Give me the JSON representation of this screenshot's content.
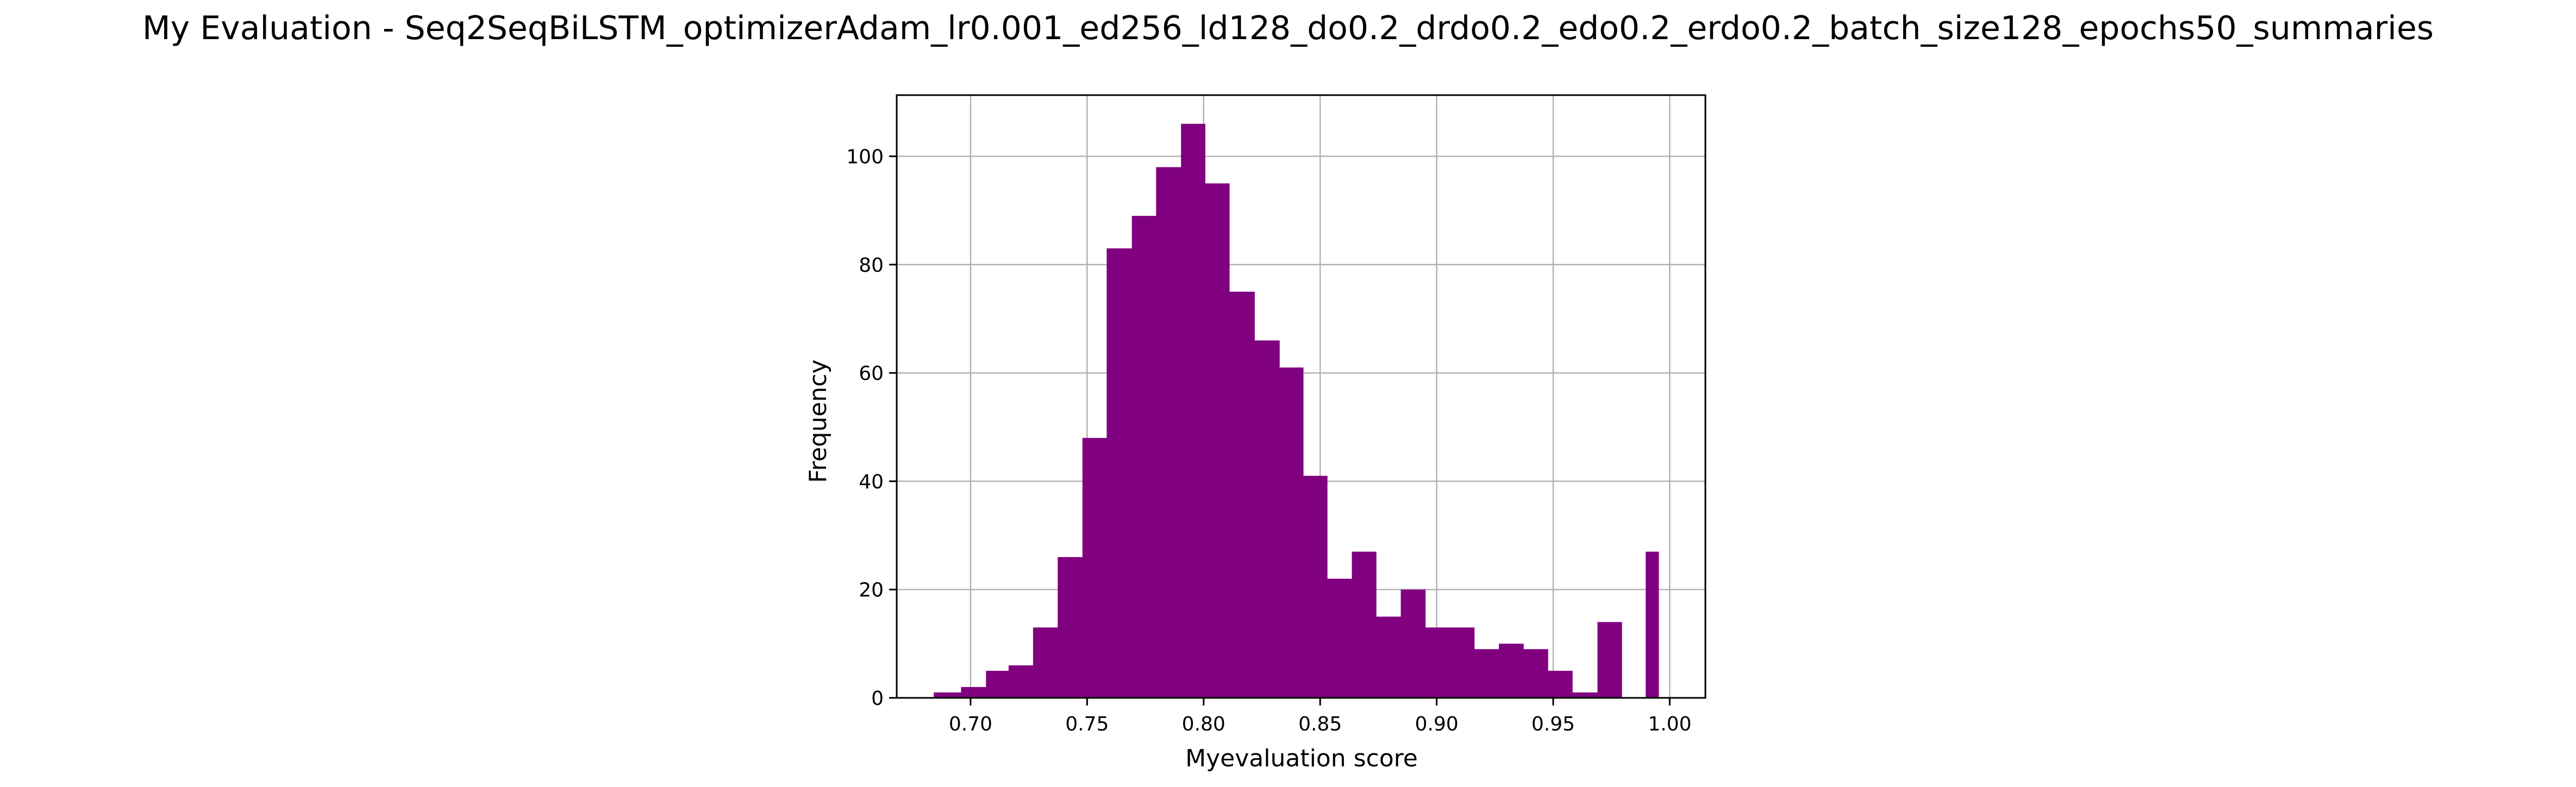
{
  "chart_data": {
    "type": "bar",
    "title": "My Evaluation - Seq2SeqBiLSTM_optimizerAdam_lr0.001_ed256_ld128_do0.2_drdo0.2_edo0.2_erdo0.2_batch_size128_epochs50_summaries",
    "xlabel": "Myevaluation score",
    "ylabel": "Frequency",
    "xlim": [
      0.6683,
      1.0153
    ],
    "ylim": [
      0,
      111.3
    ],
    "x_ticks": [
      0.7,
      0.75,
      0.8,
      0.85,
      0.9,
      0.95,
      1.0
    ],
    "x_tick_labels": [
      "0.70",
      "0.75",
      "0.80",
      "0.85",
      "0.90",
      "0.95",
      "1.00"
    ],
    "y_ticks": [
      0,
      20,
      40,
      60,
      80,
      100
    ],
    "y_tick_labels": [
      "0",
      "20",
      "40",
      "60",
      "80",
      "100"
    ],
    "grid": true,
    "bar_color": "#800080",
    "bin_edges": [
      0.6842,
      0.6899,
      0.6959,
      0.7007,
      0.7066,
      0.7112,
      0.7163,
      0.7218,
      0.7268,
      0.7323,
      0.7374,
      0.7429,
      0.748,
      0.7534,
      0.7584,
      0.764,
      0.7692,
      0.7745,
      0.7796,
      0.785,
      0.7903,
      0.7955,
      0.8006,
      0.8061,
      0.811,
      0.8165,
      0.8218,
      0.8271,
      0.8325,
      0.8376,
      0.8427,
      0.8478,
      0.853,
      0.8583,
      0.8636,
      0.869,
      0.874,
      0.8794,
      0.8846,
      0.8901,
      0.8951,
      0.9006,
      0.9055,
      0.911,
      0.9161,
      0.9214,
      0.9267,
      0.9319,
      0.9372,
      0.9424,
      0.9477,
      0.953,
      0.9582,
      0.9634,
      0.969,
      0.974,
      0.9794,
      0.9845,
      0.9897,
      0.9952
    ],
    "values": [
      1,
      1,
      2,
      2,
      5,
      5,
      6,
      6,
      13,
      13,
      26,
      26,
      48,
      48,
      83,
      83,
      89,
      89,
      98,
      98,
      106,
      106,
      95,
      95,
      75,
      75,
      66,
      66,
      61,
      61,
      41,
      41,
      22,
      22,
      27,
      27,
      15,
      15,
      20,
      20,
      13,
      13,
      13,
      13,
      9,
      9,
      10,
      10,
      9,
      9,
      5,
      5,
      1,
      1,
      14,
      14,
      0,
      0,
      27
    ]
  }
}
